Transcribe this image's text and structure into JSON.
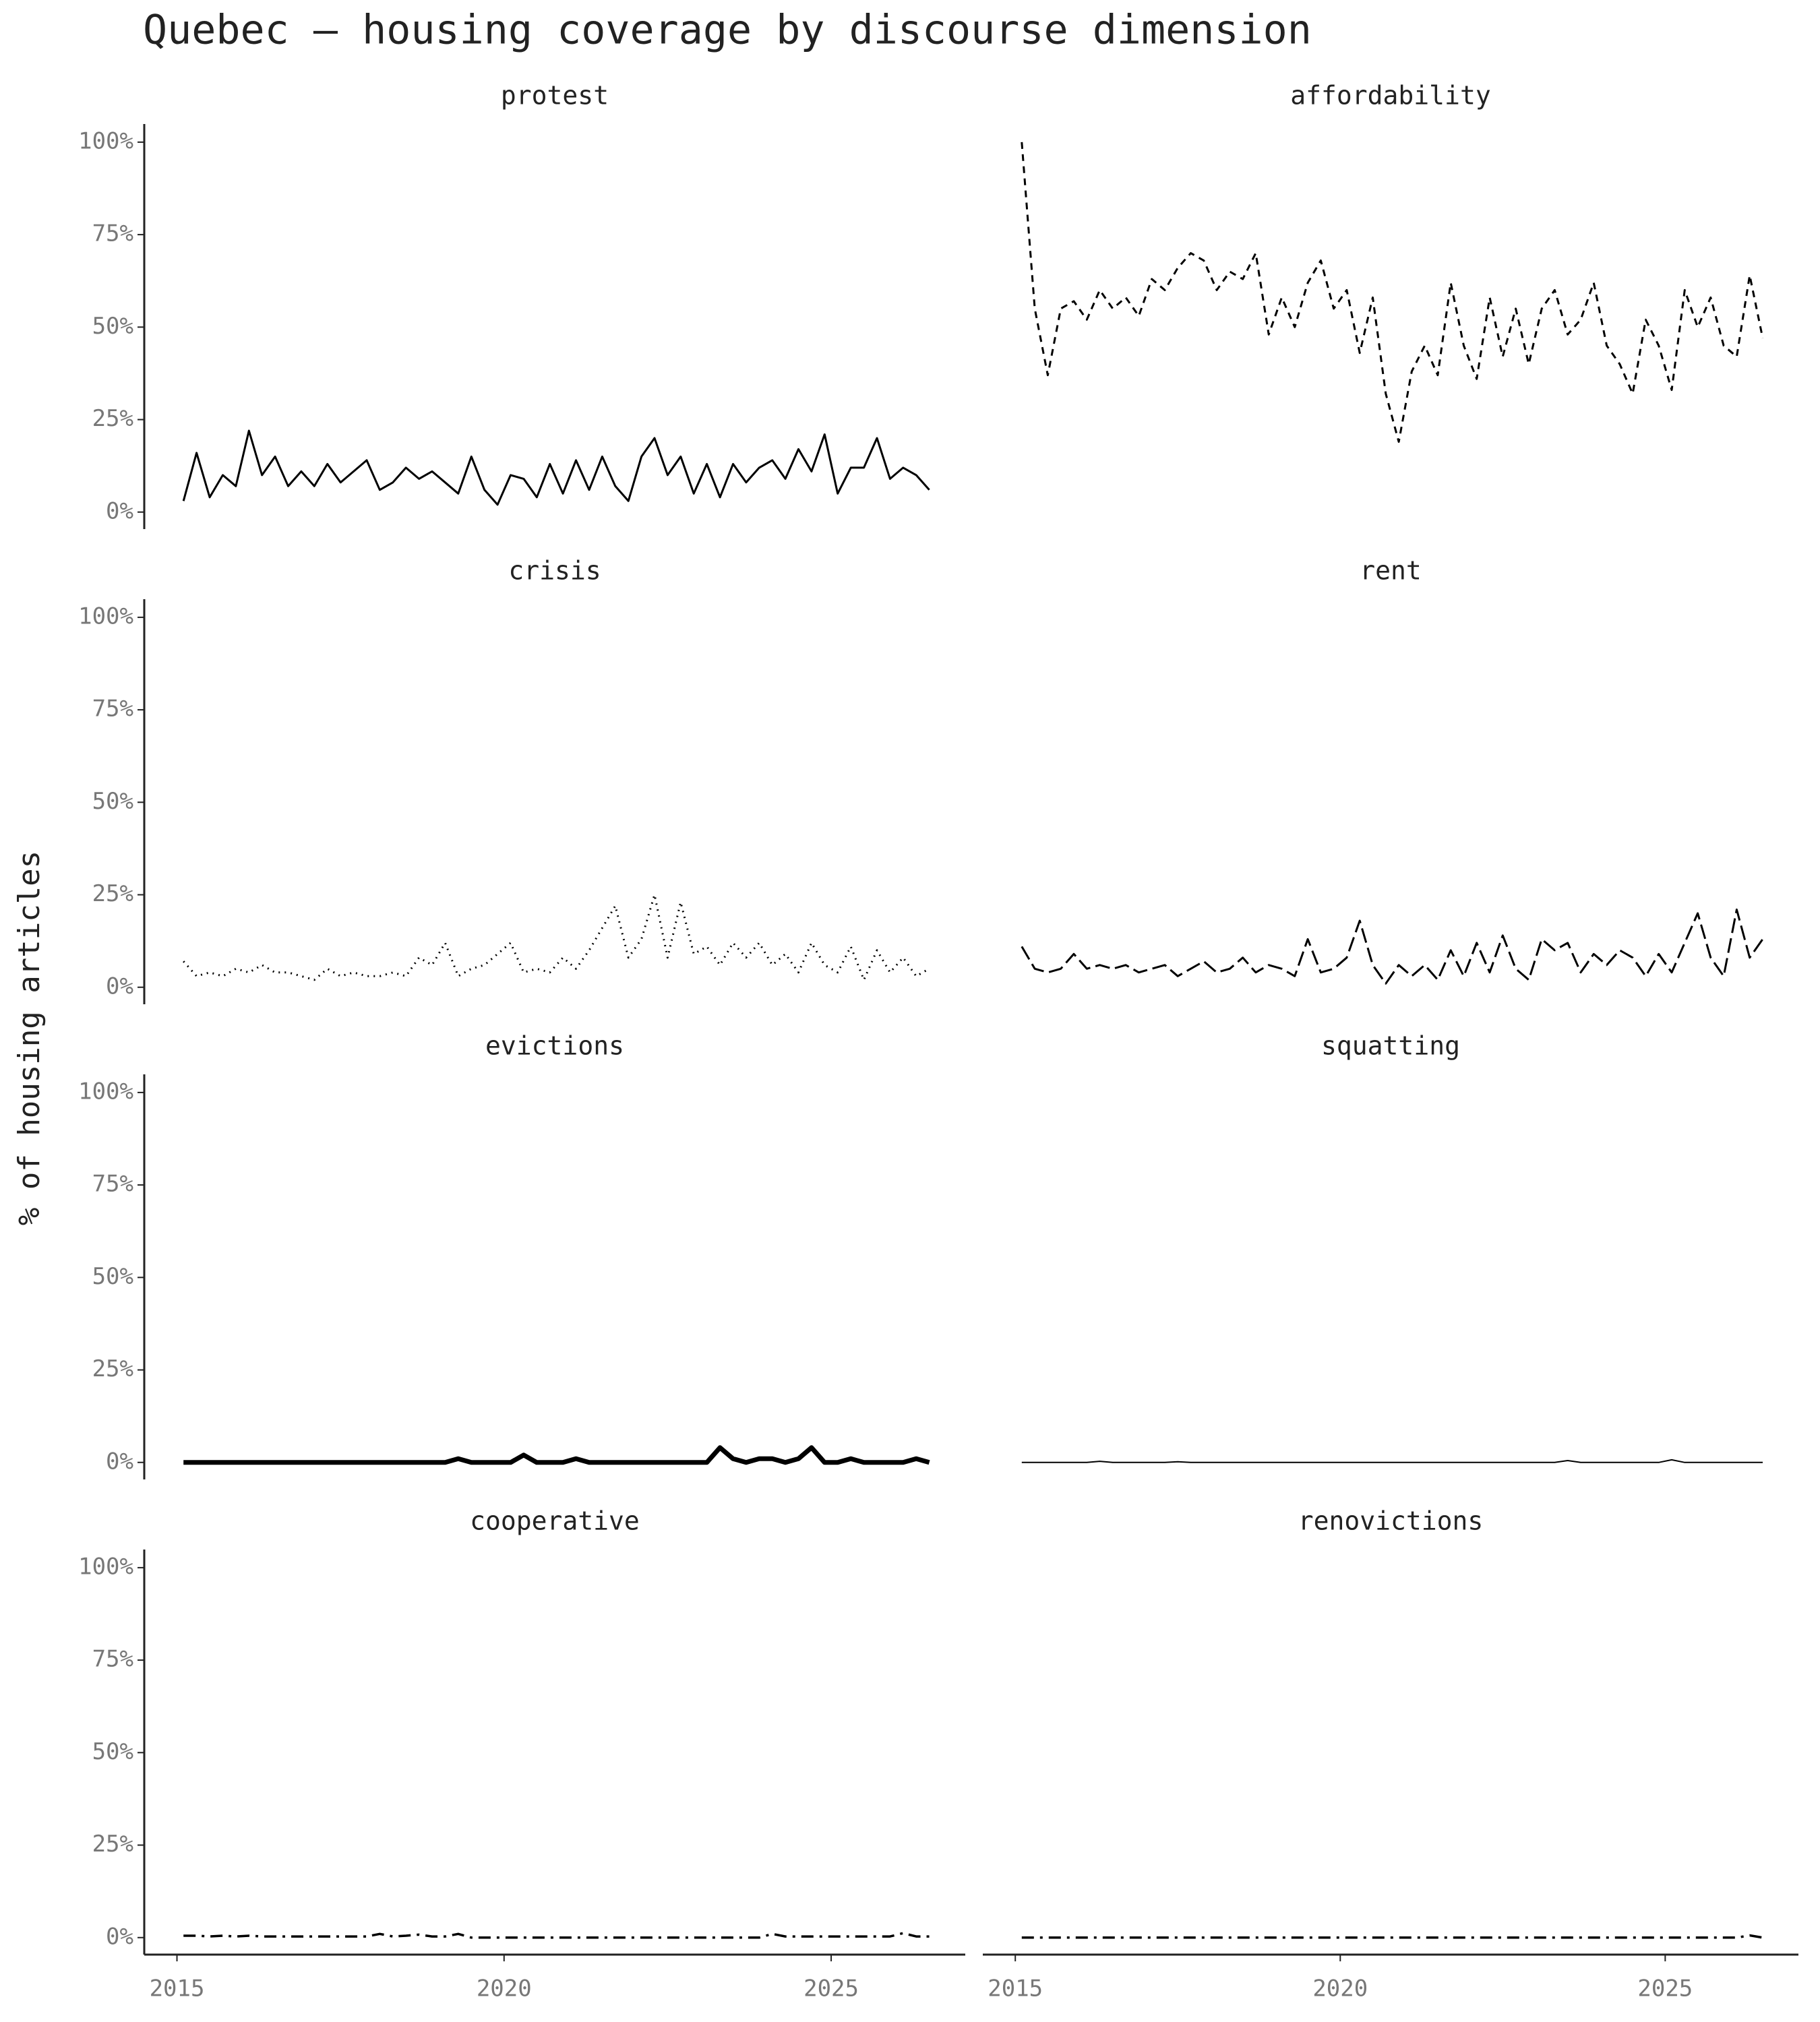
{
  "chart_data": {
    "type": "line",
    "title": "Quebec — housing coverage by discourse dimension",
    "ylabel": "% of housing articles",
    "x": [
      2015.1,
      2015.3,
      2015.5,
      2015.7,
      2015.9,
      2016.1,
      2016.3,
      2016.5,
      2016.7,
      2016.9,
      2017.1,
      2017.3,
      2017.5,
      2017.7,
      2017.9,
      2018.1,
      2018.3,
      2018.5,
      2018.7,
      2018.9,
      2019.1,
      2019.3,
      2019.5,
      2019.7,
      2019.9,
      2020.1,
      2020.3,
      2020.5,
      2020.7,
      2020.9,
      2021.1,
      2021.3,
      2021.5,
      2021.7,
      2021.9,
      2022.1,
      2022.3,
      2022.5,
      2022.7,
      2022.9,
      2023.1,
      2023.3,
      2023.5,
      2023.7,
      2023.9,
      2024.1,
      2024.3,
      2024.5,
      2024.7,
      2024.9,
      2025.1,
      2025.3,
      2025.5,
      2025.7,
      2025.9,
      2026.1,
      2026.3,
      2026.5
    ],
    "xlim": [
      2014.5,
      2027.05
    ],
    "xticks": [
      2015,
      2020,
      2025
    ],
    "ylim": [
      -4.6,
      104.9
    ],
    "yticks": [
      {
        "value": 0,
        "label": "0%"
      },
      {
        "value": 25,
        "label": "25%"
      },
      {
        "value": 50,
        "label": "50%"
      },
      {
        "value": 75,
        "label": "75%"
      },
      {
        "value": 100,
        "label": "100%"
      }
    ],
    "series": [
      {
        "name": "protest",
        "color": "#000000",
        "linestyle": "solid",
        "values": [
          3,
          16,
          4,
          10,
          7,
          22,
          10,
          15,
          7,
          11,
          7,
          13,
          8,
          11,
          14,
          6,
          8,
          12,
          9,
          11,
          8,
          5,
          15,
          6,
          2,
          10,
          9,
          4,
          13,
          5,
          14,
          6,
          15,
          7,
          3,
          15,
          20,
          10,
          15,
          5,
          13,
          4,
          13,
          8,
          12,
          14,
          9,
          17,
          11,
          21,
          5,
          12,
          12,
          20,
          9,
          12,
          10,
          6
        ]
      },
      {
        "name": "affordability",
        "color": "#000000",
        "linestyle": "dashed",
        "values": [
          100,
          55,
          37,
          55,
          57,
          52,
          60,
          55,
          58,
          53,
          63,
          60,
          66,
          70,
          68,
          60,
          65,
          63,
          70,
          48,
          58,
          50,
          62,
          68,
          55,
          60,
          43,
          58,
          32,
          19,
          38,
          45,
          37,
          62,
          45,
          36,
          58,
          42,
          55,
          40,
          55,
          60,
          48,
          52,
          62,
          45,
          40,
          32,
          52,
          45,
          33,
          60,
          50,
          58,
          45,
          42,
          64,
          47
        ]
      },
      {
        "name": "crisis",
        "color": "#000000",
        "linestyle": "dotted",
        "values": [
          7,
          3,
          4,
          3,
          5,
          4,
          6,
          4,
          4,
          3,
          2,
          5,
          3,
          4,
          3,
          3,
          4,
          3,
          8,
          6,
          12,
          3,
          5,
          6,
          9,
          12,
          4,
          5,
          4,
          8,
          5,
          10,
          16,
          22,
          8,
          13,
          25,
          8,
          23,
          9,
          11,
          6,
          12,
          8,
          12,
          6,
          9,
          4,
          12,
          6,
          4,
          11,
          2,
          10,
          4,
          8,
          3,
          5
        ]
      },
      {
        "name": "rent",
        "color": "#000000",
        "linestyle": "longdash",
        "values": [
          11,
          5,
          4,
          5,
          9,
          5,
          6,
          5,
          6,
          4,
          5,
          6,
          3,
          5,
          7,
          4,
          5,
          8,
          4,
          6,
          5,
          3,
          13,
          4,
          5,
          8,
          18,
          6,
          1,
          6,
          3,
          6,
          2,
          10,
          3,
          12,
          4,
          14,
          5,
          2,
          13,
          10,
          12,
          4,
          9,
          6,
          10,
          8,
          3,
          9,
          4,
          12,
          20,
          8,
          3,
          21,
          8,
          13
        ]
      },
      {
        "name": "evictions",
        "color": "#000000",
        "linestyle": "thick",
        "values": [
          0,
          0,
          0,
          0,
          0,
          0,
          0,
          0,
          0,
          0,
          0,
          0,
          0,
          0,
          0,
          0,
          0,
          0,
          0,
          0,
          0,
          1,
          0,
          0,
          0,
          0,
          2,
          0,
          0,
          0,
          1,
          0,
          0,
          0,
          0,
          0,
          0,
          0,
          0,
          0,
          0,
          4,
          1,
          0,
          1,
          1,
          0,
          1,
          4,
          0,
          0,
          1,
          0,
          0,
          0,
          0,
          1,
          0
        ]
      },
      {
        "name": "squatting",
        "color": "#000000",
        "linestyle": "thin",
        "values": [
          0,
          0,
          0,
          0,
          0,
          0,
          0.3,
          0,
          0,
          0,
          0,
          0,
          0.2,
          0,
          0,
          0,
          0,
          0,
          0,
          0,
          0,
          0,
          0,
          0,
          0,
          0,
          0,
          0,
          0,
          0,
          0,
          0,
          0,
          0,
          0,
          0,
          0,
          0,
          0,
          0,
          0,
          0,
          0.5,
          0,
          0,
          0,
          0,
          0,
          0,
          0,
          0.7,
          0,
          0,
          0,
          0,
          0,
          0,
          0
        ]
      },
      {
        "name": "cooperative",
        "color": "#000000",
        "linestyle": "dotdash",
        "values": [
          0.5,
          0.5,
          0.3,
          0.5,
          0.3,
          0.5,
          0.3,
          0.3,
          0.3,
          0.3,
          0.3,
          0.3,
          0.3,
          0.3,
          0.3,
          1,
          0.3,
          0.5,
          0.8,
          0.3,
          0.3,
          1,
          0,
          0,
          0,
          0,
          0,
          0,
          0,
          0,
          0,
          0,
          0,
          0,
          0,
          0,
          0,
          0,
          0,
          0,
          0,
          0,
          0,
          0,
          0,
          1,
          0.3,
          0.3,
          0.3,
          0.3,
          0.3,
          0.3,
          0.3,
          0.3,
          0.3,
          1.2,
          0.3,
          0.3
        ]
      },
      {
        "name": "renovictions",
        "color": "#000000",
        "linestyle": "dotdash",
        "values": [
          0,
          0,
          0,
          0,
          0,
          0,
          0,
          0,
          0,
          0,
          0,
          0,
          0,
          0,
          0,
          0,
          0,
          0,
          0,
          0,
          0,
          0,
          0,
          0,
          0,
          0,
          0,
          0,
          0,
          0,
          0,
          0,
          0,
          0,
          0,
          0,
          0,
          0,
          0,
          0,
          0,
          0,
          0,
          0,
          0,
          0,
          0,
          0,
          0,
          0,
          0,
          0,
          0,
          0,
          0,
          0,
          0.6,
          0
        ]
      }
    ]
  }
}
